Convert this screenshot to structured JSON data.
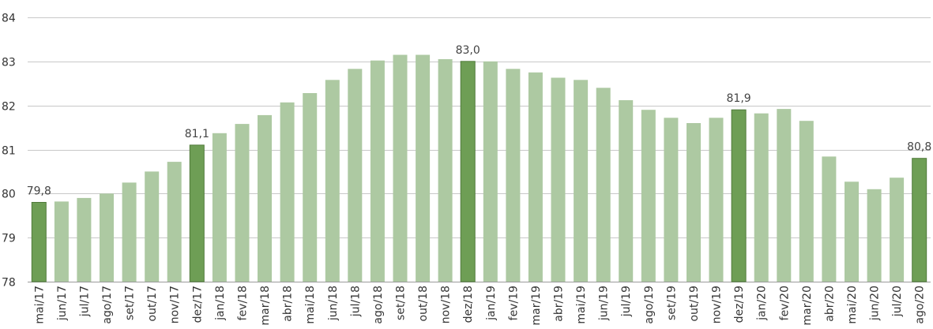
{
  "colors": {
    "bar": "#adc9a2",
    "highlight": "#6e9e55",
    "highlight_border": "#4f7a3a",
    "grid": "#c8c8c8"
  },
  "chart_data": {
    "type": "bar",
    "title": "",
    "xlabel": "",
    "ylabel": "",
    "ylim": [
      78,
      84
    ],
    "yticks": [
      78,
      79,
      80,
      81,
      82,
      83,
      84
    ],
    "grid": true,
    "legend": "none",
    "categories": [
      "mai/17",
      "jun/17",
      "jul/17",
      "ago/17",
      "set/17",
      "out/17",
      "nov/17",
      "dez/17",
      "jan/18",
      "fev/18",
      "mar/18",
      "abr/18",
      "mai/18",
      "jun/18",
      "jul/18",
      "ago/18",
      "set/18",
      "out/18",
      "nov/18",
      "dez/18",
      "jan/19",
      "fev/19",
      "mar/19",
      "abr/19",
      "mai/19",
      "jun/19",
      "jul/19",
      "ago/19",
      "set/19",
      "out/19",
      "nov/19",
      "dez/19",
      "jan/20",
      "fev/20",
      "mar/20",
      "abr/20",
      "mai/20",
      "jun/20",
      "jul/20",
      "ago/20"
    ],
    "values": [
      79.8,
      79.82,
      79.9,
      80.0,
      80.25,
      80.5,
      80.72,
      81.1,
      81.37,
      81.58,
      81.78,
      82.07,
      82.28,
      82.58,
      82.83,
      83.02,
      83.15,
      83.15,
      83.05,
      83.0,
      83.0,
      82.83,
      82.75,
      82.63,
      82.58,
      82.4,
      82.12,
      81.9,
      81.72,
      81.6,
      81.72,
      81.9,
      81.82,
      81.92,
      81.65,
      80.84,
      80.27,
      80.1,
      80.36,
      80.8
    ],
    "highlighted": [
      0,
      7,
      19,
      31,
      39
    ],
    "data_labels": [
      {
        "index": 0,
        "text": "79,8"
      },
      {
        "index": 7,
        "text": "81,1"
      },
      {
        "index": 19,
        "text": "83,0"
      },
      {
        "index": 31,
        "text": "81,9"
      },
      {
        "index": 39,
        "text": "80,8"
      }
    ]
  }
}
